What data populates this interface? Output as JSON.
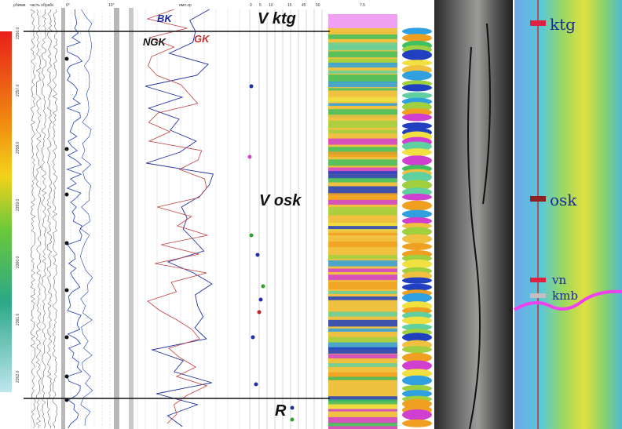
{
  "header": {
    "col1": "ρбимм",
    "col2": "часть обрабс",
    "col3a": "0°",
    "col3b": "10°",
    "col4": "имп.хр",
    "scale": [
      "0",
      "5",
      "10",
      "15",
      "45",
      "50"
    ],
    "img_scale": "7.5"
  },
  "depths": [
    "2356.0",
    "2357.0",
    "2358.0",
    "2359.0",
    "2360.0",
    "2361.0",
    "2362.0"
  ],
  "curves": {
    "bk": "BK",
    "gk": "GK",
    "ngk": "NGK"
  },
  "units_log": {
    "top": "V ktg",
    "middle": "V osk",
    "bottom": "R"
  },
  "section_labels": {
    "ktg": "ktg",
    "osk": "osk",
    "vn": "vn",
    "kmb": "kmb"
  }
}
